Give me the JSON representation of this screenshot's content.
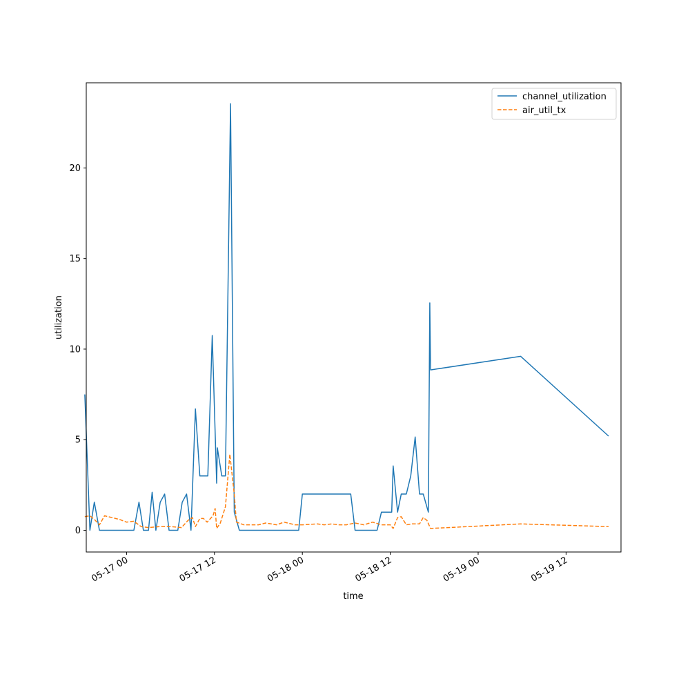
{
  "chart_data": {
    "type": "line",
    "title": "",
    "xlabel": "time",
    "ylabel": "utilization",
    "x_unit": "datetime",
    "xlim": [
      "2016-05-16 18:30",
      "2016-05-19 19:30"
    ],
    "ylim": [
      -1.2,
      24.7
    ],
    "grid": false,
    "legend_position": "top-right",
    "x_ticks": [
      {
        "value": "2016-05-17 00:00",
        "label": "05-17 00"
      },
      {
        "value": "2016-05-17 12:00",
        "label": "05-17 12"
      },
      {
        "value": "2016-05-18 00:00",
        "label": "05-18 00"
      },
      {
        "value": "2016-05-18 12:00",
        "label": "05-18 12"
      },
      {
        "value": "2016-05-19 00:00",
        "label": "05-19 00"
      },
      {
        "value": "2016-05-19 12:00",
        "label": "05-19 12"
      }
    ],
    "y_ticks": [
      {
        "value": 0,
        "label": "0"
      },
      {
        "value": 5,
        "label": "5"
      },
      {
        "value": 10,
        "label": "10"
      },
      {
        "value": 15,
        "label": "15"
      },
      {
        "value": 20,
        "label": "20"
      }
    ],
    "series": [
      {
        "name": "channel_utilization",
        "color": "#1f77b4",
        "style": "solid",
        "points": [
          [
            "2016-05-16 18:18",
            7.5
          ],
          [
            "2016-05-16 19:00",
            0.0
          ],
          [
            "2016-05-16 19:36",
            1.55
          ],
          [
            "2016-05-16 20:18",
            0.0
          ],
          [
            "2016-05-16 21:30",
            0.0
          ],
          [
            "2016-05-16 23:00",
            0.0
          ],
          [
            "2016-05-17 01:00",
            0.0
          ],
          [
            "2016-05-17 01:42",
            1.55
          ],
          [
            "2016-05-17 02:18",
            0.0
          ],
          [
            "2016-05-17 03:00",
            0.0
          ],
          [
            "2016-05-17 03:30",
            2.1
          ],
          [
            "2016-05-17 04:00",
            0.0
          ],
          [
            "2016-05-17 04:36",
            1.55
          ],
          [
            "2016-05-17 05:12",
            2.0
          ],
          [
            "2016-05-17 05:48",
            0.0
          ],
          [
            "2016-05-17 07:00",
            0.0
          ],
          [
            "2016-05-17 07:36",
            1.55
          ],
          [
            "2016-05-17 08:12",
            2.0
          ],
          [
            "2016-05-17 08:48",
            0.0
          ],
          [
            "2016-05-17 09:24",
            6.7
          ],
          [
            "2016-05-17 10:00",
            3.0
          ],
          [
            "2016-05-17 10:30",
            3.0
          ],
          [
            "2016-05-17 11:06",
            3.0
          ],
          [
            "2016-05-17 11:42",
            10.75
          ],
          [
            "2016-05-17 12:18",
            2.6
          ],
          [
            "2016-05-17 12:24",
            4.55
          ],
          [
            "2016-05-17 13:00",
            3.0
          ],
          [
            "2016-05-17 13:30",
            3.0
          ],
          [
            "2016-05-17 14:12",
            23.55
          ],
          [
            "2016-05-17 14:42",
            1.0
          ],
          [
            "2016-05-17 15:24",
            0.0
          ],
          [
            "2016-05-17 18:00",
            0.0
          ],
          [
            "2016-05-17 21:00",
            0.0
          ],
          [
            "2016-05-17 23:30",
            0.0
          ],
          [
            "2016-05-18 00:00",
            2.0
          ],
          [
            "2016-05-18 03:00",
            2.0
          ],
          [
            "2016-05-18 06:36",
            2.0
          ],
          [
            "2016-05-18 07:12",
            0.0
          ],
          [
            "2016-05-18 09:00",
            0.0
          ],
          [
            "2016-05-18 10:12",
            0.0
          ],
          [
            "2016-05-18 10:48",
            1.0
          ],
          [
            "2016-05-18 12:12",
            1.0
          ],
          [
            "2016-05-18 12:24",
            3.55
          ],
          [
            "2016-05-18 13:00",
            1.0
          ],
          [
            "2016-05-18 13:30",
            2.0
          ],
          [
            "2016-05-18 14:12",
            2.0
          ],
          [
            "2016-05-18 14:48",
            3.0
          ],
          [
            "2016-05-18 15:24",
            5.15
          ],
          [
            "2016-05-18 16:00",
            2.0
          ],
          [
            "2016-05-18 16:30",
            2.0
          ],
          [
            "2016-05-18 17:12",
            1.0
          ],
          [
            "2016-05-18 17:24",
            12.55
          ],
          [
            "2016-05-18 17:30",
            8.85
          ],
          [
            "2016-05-19 05:48",
            9.6
          ],
          [
            "2016-05-19 17:48",
            5.2
          ]
        ]
      },
      {
        "name": "air_util_tx",
        "color": "#ff7f0e",
        "style": "dashed",
        "points": [
          [
            "2016-05-16 18:18",
            0.75
          ],
          [
            "2016-05-16 19:00",
            0.8
          ],
          [
            "2016-05-16 19:36",
            0.6
          ],
          [
            "2016-05-16 20:18",
            0.3
          ],
          [
            "2016-05-16 21:00",
            0.8
          ],
          [
            "2016-05-16 23:00",
            0.6
          ],
          [
            "2016-05-17 00:00",
            0.45
          ],
          [
            "2016-05-17 01:00",
            0.5
          ],
          [
            "2016-05-17 02:00",
            0.2
          ],
          [
            "2016-05-17 03:00",
            0.15
          ],
          [
            "2016-05-17 04:30",
            0.2
          ],
          [
            "2016-05-17 06:00",
            0.2
          ],
          [
            "2016-05-17 07:30",
            0.15
          ],
          [
            "2016-05-17 08:24",
            0.55
          ],
          [
            "2016-05-17 09:00",
            0.7
          ],
          [
            "2016-05-17 09:24",
            0.2
          ],
          [
            "2016-05-17 10:00",
            0.65
          ],
          [
            "2016-05-17 10:30",
            0.65
          ],
          [
            "2016-05-17 11:00",
            0.45
          ],
          [
            "2016-05-17 11:48",
            0.8
          ],
          [
            "2016-05-17 12:06",
            1.2
          ],
          [
            "2016-05-17 12:18",
            0.1
          ],
          [
            "2016-05-17 12:48",
            0.4
          ],
          [
            "2016-05-17 13:30",
            1.3
          ],
          [
            "2016-05-17 14:06",
            4.2
          ],
          [
            "2016-05-17 14:42",
            2.0
          ],
          [
            "2016-05-17 15:00",
            0.45
          ],
          [
            "2016-05-17 16:00",
            0.3
          ],
          [
            "2016-05-17 17:00",
            0.3
          ],
          [
            "2016-05-17 18:00",
            0.3
          ],
          [
            "2016-05-17 19:00",
            0.4
          ],
          [
            "2016-05-17 20:30",
            0.3
          ],
          [
            "2016-05-17 21:30",
            0.45
          ],
          [
            "2016-05-17 23:00",
            0.3
          ],
          [
            "2016-05-18 00:00",
            0.3
          ],
          [
            "2016-05-18 02:00",
            0.35
          ],
          [
            "2016-05-18 03:00",
            0.3
          ],
          [
            "2016-05-18 04:00",
            0.35
          ],
          [
            "2016-05-18 05:00",
            0.3
          ],
          [
            "2016-05-18 06:00",
            0.3
          ],
          [
            "2016-05-18 07:12",
            0.4
          ],
          [
            "2016-05-18 08:24",
            0.3
          ],
          [
            "2016-05-18 09:36",
            0.45
          ],
          [
            "2016-05-18 10:48",
            0.3
          ],
          [
            "2016-05-18 12:00",
            0.3
          ],
          [
            "2016-05-18 12:24",
            0.1
          ],
          [
            "2016-05-18 13:00",
            0.7
          ],
          [
            "2016-05-18 13:30",
            0.75
          ],
          [
            "2016-05-18 14:12",
            0.3
          ],
          [
            "2016-05-18 15:00",
            0.35
          ],
          [
            "2016-05-18 16:00",
            0.35
          ],
          [
            "2016-05-18 16:30",
            0.7
          ],
          [
            "2016-05-18 17:00",
            0.55
          ],
          [
            "2016-05-18 17:30",
            0.1
          ],
          [
            "2016-05-19 05:48",
            0.35
          ],
          [
            "2016-05-19 17:48",
            0.2
          ]
        ]
      }
    ]
  }
}
